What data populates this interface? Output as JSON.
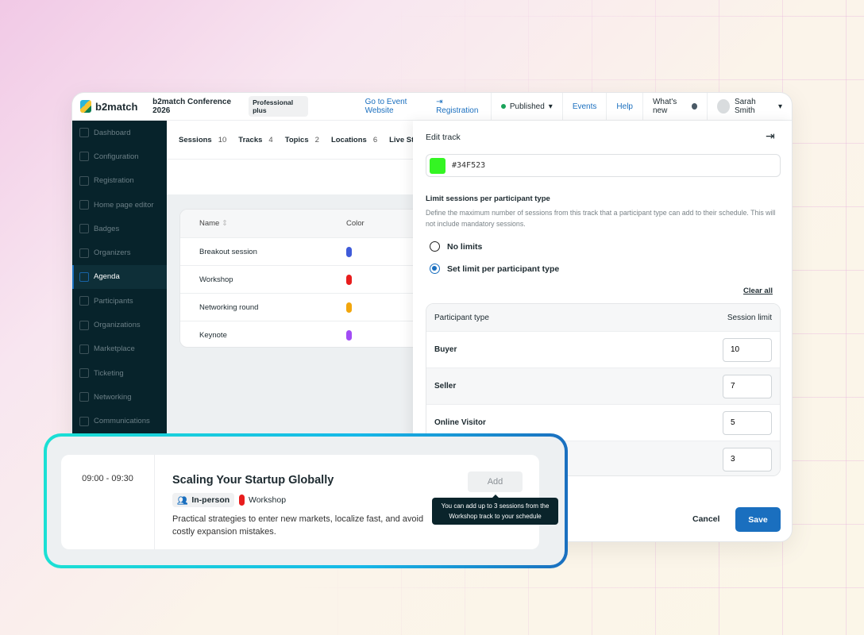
{
  "header": {
    "brand": "b2match",
    "event_title": "Professional plus",
    "conference": "b2match Conference 2026",
    "plan_badge": "Professional plus",
    "event_website_link": "Go to Event Website",
    "registration_link": "Registration",
    "status": "Published",
    "status_color": "#1aa35a",
    "events": "Events",
    "help": "Help",
    "whats_new": "What's new",
    "user": "Sarah Smith"
  },
  "sidebar": {
    "items": [
      {
        "label": "Dashboard",
        "icon": "chart-icon"
      },
      {
        "label": "Configuration",
        "icon": "gear-icon"
      },
      {
        "label": "Registration",
        "icon": "clipboard-icon"
      },
      {
        "label": "Home page editor",
        "icon": "document-icon"
      },
      {
        "label": "Badges",
        "icon": "export-icon"
      },
      {
        "label": "Organizers",
        "icon": "users-icon"
      },
      {
        "label": "Agenda",
        "icon": "calendar-icon",
        "active": true
      },
      {
        "label": "Participants",
        "icon": "users-icon"
      },
      {
        "label": "Organizations",
        "icon": "building-icon"
      },
      {
        "label": "Marketplace",
        "icon": "list-icon"
      },
      {
        "label": "Ticketing",
        "icon": "tag-icon"
      },
      {
        "label": "Networking",
        "icon": "handshake-icon"
      },
      {
        "label": "Communications",
        "icon": "chat-icon"
      }
    ]
  },
  "tabs": [
    {
      "label": "Sessions",
      "count": "10"
    },
    {
      "label": "Tracks",
      "count": "4"
    },
    {
      "label": "Topics",
      "count": "2"
    },
    {
      "label": "Locations",
      "count": "6"
    },
    {
      "label": "Live Strean",
      "count": ""
    }
  ],
  "tracks_table": {
    "headers": {
      "name": "Name",
      "color": "Color"
    },
    "rows": [
      {
        "name": "Breakout session",
        "color": "#3f5bd9"
      },
      {
        "name": "Workshop",
        "color": "#e81d1d"
      },
      {
        "name": "Networking round",
        "color": "#f2a60c"
      },
      {
        "name": "Keynote",
        "color": "#a24cf5"
      }
    ]
  },
  "edit_track": {
    "title": "Edit track",
    "color_value": "#34F523",
    "limit_label": "Limit sessions per participant type",
    "limit_desc": "Define the maximum number of sessions from this track that a participant type can add to their schedule. This will not include mandatory sessions.",
    "options": [
      {
        "label": "No limits",
        "selected": false
      },
      {
        "label": "Set limit per participant type",
        "selected": true
      }
    ],
    "clear_all": "Clear all",
    "table_headers": {
      "type": "Participant type",
      "limit": "Session limit"
    },
    "rows": [
      {
        "type": "Buyer",
        "limit": "10"
      },
      {
        "type": "Seller",
        "limit": "7"
      },
      {
        "type": "Online Visitor",
        "limit": "5"
      },
      {
        "type": "",
        "limit": "3"
      }
    ],
    "cancel": "Cancel",
    "save": "Save"
  },
  "session_card": {
    "time": "09:00 - 09:30",
    "title": "Scaling Your Startup Globally",
    "format": "In-person",
    "track": "Workshop",
    "track_color": "#e81d1d",
    "description": "Practical strategies to enter new markets, localize fast, and avoid costly expansion mistakes.",
    "add": "Add",
    "tooltip": "You can add up to 3 sessions from the Workshop track to your schedule"
  }
}
